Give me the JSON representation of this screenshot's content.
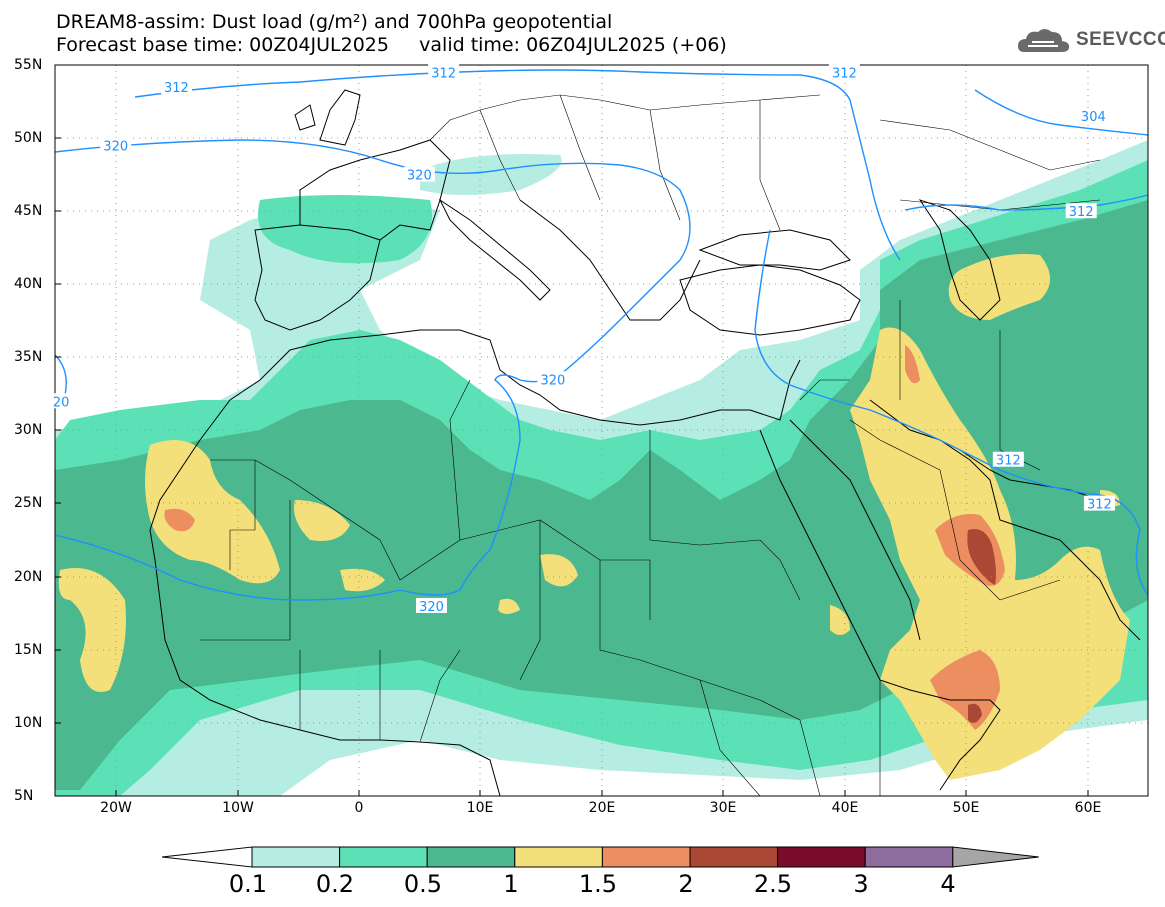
{
  "title": {
    "line1": "DREAM8-assim: Dust load (g/m²) and 700hPa geopotential",
    "line2": "Forecast base time: 00Z04JUL2025     valid time: 06Z04JUL2025 (+06)"
  },
  "logo": {
    "text": "SEEVCCC",
    "icon": "cloud-logo-icon"
  },
  "map": {
    "lat_ticks": [
      "55N",
      "50N",
      "45N",
      "40N",
      "35N",
      "30N",
      "25N",
      "20N",
      "15N",
      "10N",
      "5N"
    ],
    "lon_ticks": [
      "20W",
      "10W",
      "0",
      "10E",
      "20E",
      "30E",
      "40E",
      "50E",
      "60E"
    ],
    "contour_labels": [
      {
        "text": "312",
        "lon": -15,
        "lat": 53.5
      },
      {
        "text": "312",
        "lon": 7,
        "lat": 54.5
      },
      {
        "text": "312",
        "lon": 40,
        "lat": 54.5
      },
      {
        "text": "304",
        "lon": 60.5,
        "lat": 51.5
      },
      {
        "text": "320",
        "lon": -20,
        "lat": 49.5
      },
      {
        "text": "320",
        "lon": 5,
        "lat": 47.5
      },
      {
        "text": "320",
        "lon": 16,
        "lat": 33.5
      },
      {
        "text": "320",
        "lon": 6,
        "lat": 18
      },
      {
        "text": "312",
        "lon": 53.5,
        "lat": 28
      },
      {
        "text": "312",
        "lon": 61,
        "lat": 25
      },
      {
        "text": "312",
        "lon": 59.5,
        "lat": 45
      },
      {
        "text": "20",
        "lon": -24.5,
        "lat": 32
      }
    ]
  },
  "colorbar": {
    "labels": [
      "0.1",
      "0.2",
      "0.5",
      "1",
      "1.5",
      "2",
      "2.5",
      "3",
      "4"
    ],
    "colors": [
      "#ffffff",
      "#b6ede3",
      "#5ce0b5",
      "#4bb88f",
      "#f4e07a",
      "#ec8e60",
      "#a84835",
      "#7a0d29",
      "#8e6d9e",
      "#a6a6a6"
    ]
  }
}
